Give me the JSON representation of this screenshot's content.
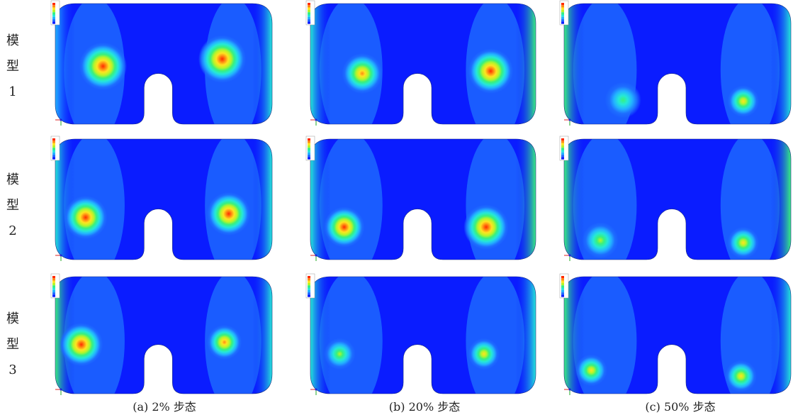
{
  "rows": [
    {
      "chars": [
        "模",
        "型",
        "1"
      ]
    },
    {
      "chars": [
        "模",
        "型",
        "2"
      ]
    },
    {
      "chars": [
        "模",
        "型",
        "3"
      ]
    }
  ],
  "captions": [
    "(a) 2% 步态",
    "(b) 20% 步态",
    "(c) 50% 步态"
  ],
  "palette": [
    "#0a1cff",
    "#1e6dff",
    "#23b3ff",
    "#25e8d8",
    "#39f07e",
    "#b6f52a",
    "#ffe321",
    "#ff8a12",
    "#ff2a00"
  ],
  "panels": [
    [
      {
        "hotspots": [
          [
            0.22,
            0.52,
            0.11,
            1.0
          ],
          [
            0.77,
            0.46,
            0.11,
            1.0
          ]
        ],
        "edge": [
          0.05,
          0.35
        ]
      },
      {
        "hotspots": [
          [
            0.23,
            0.58,
            0.09,
            0.9
          ],
          [
            0.8,
            0.56,
            0.1,
            1.0
          ]
        ],
        "edge": [
          0.3,
          0.5
        ]
      },
      {
        "hotspots": [
          [
            0.26,
            0.8,
            0.08,
            0.55
          ],
          [
            0.79,
            0.81,
            0.07,
            0.75
          ]
        ],
        "edge": [
          0.4,
          0.3
        ]
      }
    ],
    [
      {
        "hotspots": [
          [
            0.14,
            0.65,
            0.1,
            1.0
          ],
          [
            0.8,
            0.62,
            0.1,
            1.0
          ]
        ],
        "edge": [
          0.3,
          0.35
        ]
      },
      {
        "hotspots": [
          [
            0.15,
            0.73,
            0.09,
            1.0
          ],
          [
            0.78,
            0.73,
            0.1,
            1.0
          ]
        ],
        "edge": [
          0.35,
          0.45
        ]
      },
      {
        "hotspots": [
          [
            0.16,
            0.84,
            0.08,
            0.6
          ],
          [
            0.79,
            0.86,
            0.07,
            0.7
          ]
        ],
        "edge": [
          0.45,
          0.4
        ]
      }
    ],
    [
      {
        "hotspots": [
          [
            0.12,
            0.58,
            0.1,
            0.95
          ],
          [
            0.78,
            0.56,
            0.08,
            0.9
          ]
        ],
        "edge": [
          0.5,
          0.15
        ]
      },
      {
        "hotspots": [
          [
            0.13,
            0.66,
            0.07,
            0.65
          ],
          [
            0.77,
            0.66,
            0.07,
            0.7
          ]
        ],
        "edge": [
          0.35,
          0.25
        ]
      },
      {
        "hotspots": [
          [
            0.12,
            0.8,
            0.07,
            0.7
          ],
          [
            0.78,
            0.85,
            0.07,
            0.7
          ]
        ],
        "edge": [
          0.45,
          0.25
        ]
      }
    ]
  ]
}
